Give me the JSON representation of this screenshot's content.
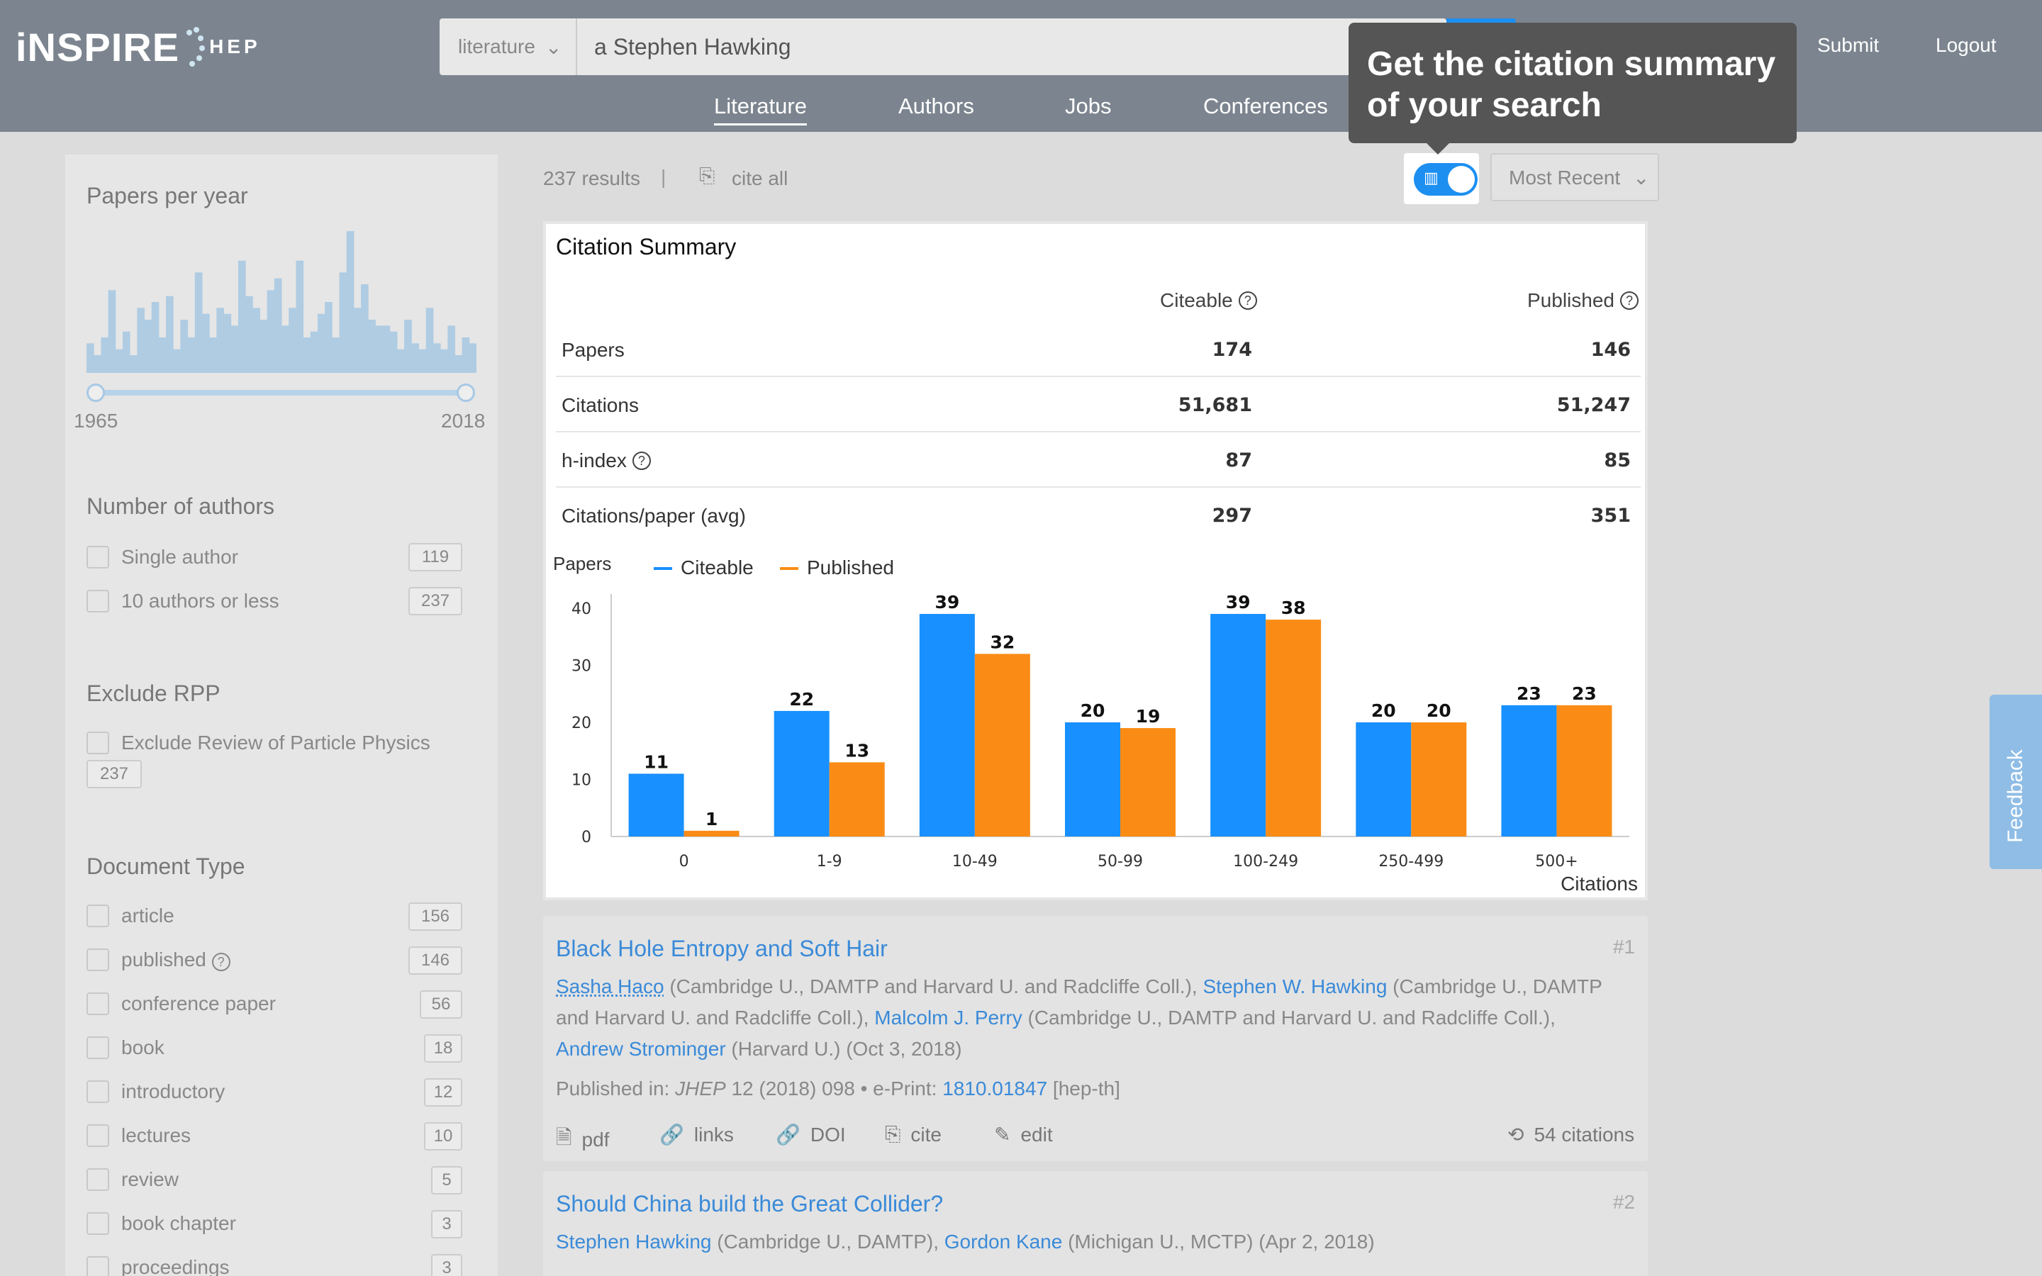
{
  "header": {
    "logo_main": "iNSPIRE",
    "logo_sub": "HEP",
    "search_scope": "literature",
    "search_query": "a Stephen Hawking",
    "links": {
      "submit": "Submit",
      "logout": "Logout"
    },
    "nav": [
      "Literature",
      "Authors",
      "Jobs",
      "Conferences"
    ]
  },
  "tooltip": "Get the citation summary of your search",
  "sidebar": {
    "papers_per_year": {
      "title": "Papers per year",
      "from": "1965",
      "to": "2018",
      "counts": [
        5,
        3,
        6,
        14,
        4,
        7,
        3,
        11,
        9,
        12,
        6,
        13,
        4,
        9,
        6,
        17,
        10,
        6,
        11,
        10,
        8,
        19,
        13,
        11,
        9,
        14,
        16,
        8,
        11,
        19,
        6,
        7,
        10,
        12,
        6,
        17,
        24,
        11,
        15,
        9,
        8,
        8,
        7,
        4,
        9,
        5,
        4,
        11,
        5,
        4,
        8,
        3,
        6,
        5
      ]
    },
    "num_authors": {
      "title": "Number of authors",
      "items": [
        {
          "label": "Single author",
          "count": "119"
        },
        {
          "label": "10 authors or less",
          "count": "237"
        }
      ]
    },
    "exclude_rpp": {
      "title": "Exclude RPP",
      "label": "Exclude Review of Particle Physics",
      "count": "237"
    },
    "doc_type": {
      "title": "Document Type",
      "items": [
        {
          "label": "article",
          "count": "156"
        },
        {
          "label": "published",
          "count": "146"
        },
        {
          "label": "conference paper",
          "count": "56"
        },
        {
          "label": "book",
          "count": "18"
        },
        {
          "label": "introductory",
          "count": "12"
        },
        {
          "label": "lectures",
          "count": "10"
        },
        {
          "label": "review",
          "count": "5"
        },
        {
          "label": "book chapter",
          "count": "3"
        },
        {
          "label": "proceedings",
          "count": "3"
        }
      ]
    }
  },
  "results_bar": {
    "count": "237 results",
    "sep": "|",
    "cite_all": "cite all",
    "sort": "Most Recent"
  },
  "citation_summary": {
    "title": "Citation Summary",
    "col1": "Citeable",
    "col2": "Published",
    "rows": [
      {
        "label": "Papers",
        "citeable": "174",
        "published": "146"
      },
      {
        "label": "Citations",
        "citeable": "51,681",
        "published": "51,247"
      },
      {
        "label": "h-index",
        "citeable": "87",
        "published": "85"
      },
      {
        "label": "Citations/paper (avg)",
        "citeable": "297",
        "published": "351"
      }
    ]
  },
  "chart_data": {
    "type": "bar",
    "categories": [
      "0",
      "1-9",
      "10-49",
      "50-99",
      "100-249",
      "250-499",
      "500+"
    ],
    "series": [
      {
        "name": "Citeable",
        "values": [
          11,
          22,
          39,
          20,
          39,
          20,
          23
        ],
        "color": "#1890ff"
      },
      {
        "name": "Published",
        "values": [
          1,
          13,
          32,
          19,
          38,
          20,
          23
        ],
        "color": "#fa8c16"
      }
    ],
    "xlabel": "Citations",
    "ylabel": "Papers",
    "ylim": [
      0,
      40
    ],
    "yticks": [
      0,
      10,
      20,
      30,
      40
    ],
    "legend": "top-left",
    "grid": false
  },
  "results": [
    {
      "num": "#1",
      "title": "Black Hole Entropy and Soft Hair",
      "authors": [
        {
          "name": "Sasha Haco",
          "aff": " (Cambridge U., DAMTP and Harvard U. and Radcliffe Coll.), "
        },
        {
          "name": "Stephen W. Hawking",
          "aff": " (Cambridge U., DAMTP and Harvard U. and Radcliffe Coll.), "
        },
        {
          "name": "Malcolm J. Perry",
          "aff": " (Cambridge U., DAMTP and Harvard U. and Radcliffe Coll.), "
        },
        {
          "name": "Andrew Strominger",
          "aff": " (Harvard U.) (Oct 3, 2018)"
        }
      ],
      "published_prefix": "Published in: ",
      "journal": "JHEP",
      "pub_rest": " 12 (2018) 098 • e-Print: ",
      "eprint": "1810.01847",
      "category": " [hep-th]",
      "actions": {
        "pdf": "pdf",
        "links": "links",
        "doi": "DOI",
        "cite": "cite",
        "edit": "edit"
      },
      "citations": "54 citations"
    },
    {
      "num": "#2",
      "title": "Should China build the Great Collider?",
      "authors": [
        {
          "name": "Stephen Hawking",
          "aff": " (Cambridge U., DAMTP), "
        },
        {
          "name": "Gordon Kane",
          "aff": " (Michigan U., MCTP) (Apr 2, 2018)"
        }
      ]
    }
  ],
  "feedback": "Feedback"
}
